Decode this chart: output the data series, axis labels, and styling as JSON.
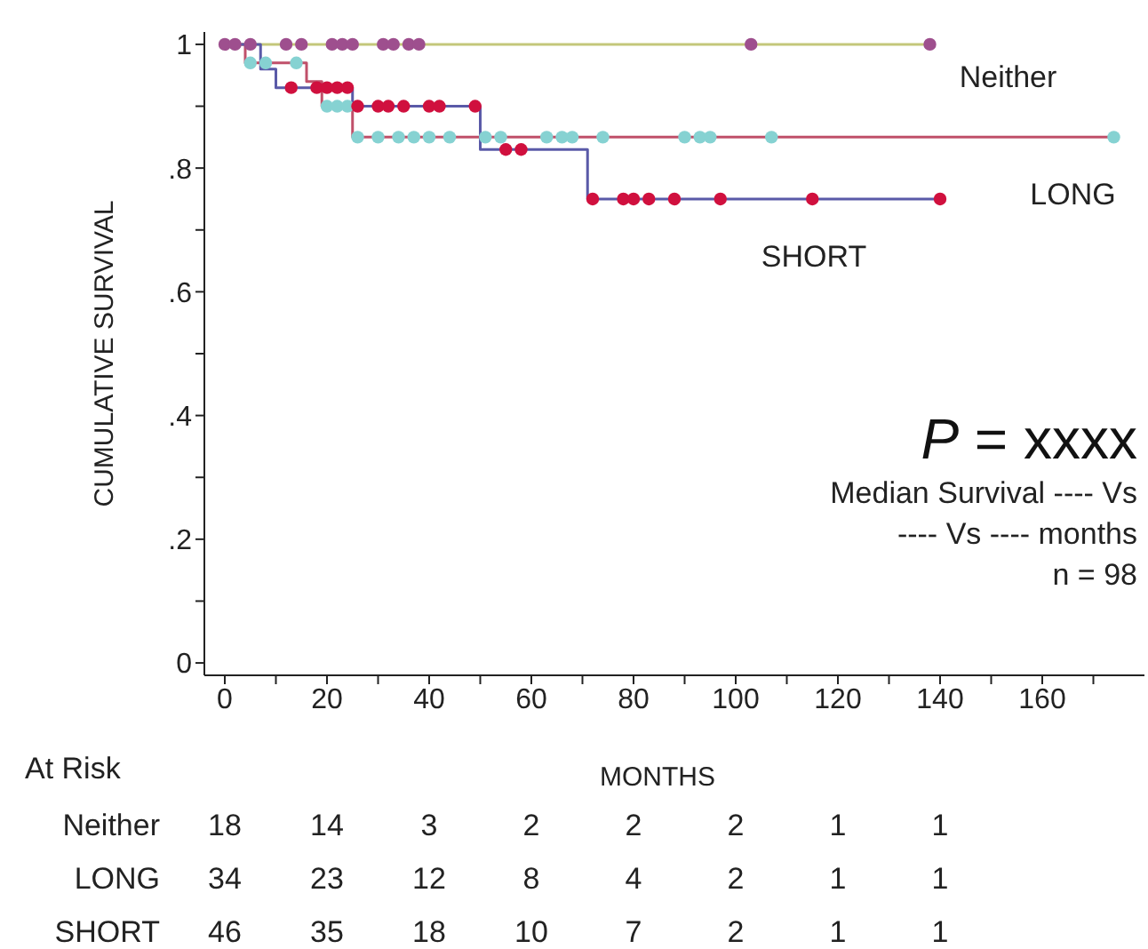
{
  "chart_data": {
    "type": "step",
    "xlabel": "MONTHS",
    "ylabel": "CUMULATIVE SURVIVAL",
    "xlim": [
      -4,
      180
    ],
    "ylim": [
      -0.02,
      1.02
    ],
    "xticks": [
      0,
      {
        "value": 10,
        "label": null
      },
      20,
      {
        "value": 30,
        "label": null
      },
      40,
      {
        "value": 50,
        "label": null
      },
      60,
      {
        "value": 70,
        "label": null
      },
      80,
      {
        "value": 90,
        "label": null
      },
      100,
      {
        "value": 110,
        "label": null
      },
      120,
      {
        "value": 130,
        "label": null
      },
      140,
      {
        "value": 150,
        "label": null
      },
      160,
      {
        "value": 170,
        "label": null
      }
    ],
    "yticks": [
      0,
      {
        "value": 0.1,
        "label": null
      },
      {
        "value": 0.2,
        "label": ".2"
      },
      {
        "value": 0.3,
        "label": null
      },
      {
        "value": 0.4,
        "label": ".4"
      },
      {
        "value": 0.5,
        "label": null
      },
      {
        "value": 0.6,
        "label": ".6"
      },
      {
        "value": 0.7,
        "label": null
      },
      {
        "value": 0.8,
        "label": ".8"
      },
      {
        "value": 0.9,
        "label": null
      },
      1
    ],
    "grid": false,
    "legend": false,
    "series": [
      {
        "name": "Neither",
        "color": "#c4c77a",
        "marker": "none",
        "x": [
          0,
          138
        ],
        "values": [
          1,
          1
        ]
      },
      {
        "name": "LONG",
        "color": "#c0506a",
        "marker": "none",
        "x": [
          0,
          4,
          16,
          19,
          25,
          174
        ],
        "values": [
          1,
          0.97,
          0.94,
          0.9,
          0.85,
          0.85
        ]
      },
      {
        "name": "SHORT",
        "color": "#5a5aa8",
        "marker": "none",
        "x": [
          0,
          7,
          10,
          25,
          50,
          71,
          140
        ],
        "values": [
          1,
          0.96,
          0.93,
          0.9,
          0.83,
          0.75,
          0.75
        ]
      },
      {
        "type": "scatter",
        "color": "#9e4f8e",
        "marker": "circle",
        "x": [
          0,
          2,
          5,
          12,
          15,
          21,
          23,
          25,
          31,
          33,
          36,
          38,
          103,
          138
        ],
        "values": [
          1,
          1,
          1,
          1,
          1,
          1,
          1,
          1,
          1,
          1,
          1,
          1,
          1,
          1
        ]
      },
      {
        "type": "scatter",
        "color": "#86d2d2",
        "marker": "circle",
        "x": [
          5,
          8,
          14,
          20,
          22,
          24,
          26,
          30,
          34,
          37,
          40,
          44,
          51,
          54,
          63,
          66,
          68,
          74,
          90,
          93,
          95,
          107,
          174
        ],
        "values": [
          0.97,
          0.97,
          0.97,
          0.9,
          0.9,
          0.9,
          0.85,
          0.85,
          0.85,
          0.85,
          0.85,
          0.85,
          0.85,
          0.85,
          0.85,
          0.85,
          0.85,
          0.85,
          0.85,
          0.85,
          0.85,
          0.85,
          0.85
        ]
      },
      {
        "type": "scatter",
        "color": "#d0103e",
        "marker": "circle",
        "x": [
          13,
          18,
          20,
          22,
          24,
          26,
          30,
          32,
          35,
          40,
          42,
          49,
          55,
          58,
          72,
          78,
          80,
          83,
          88,
          97,
          115,
          140
        ],
        "values": [
          0.93,
          0.93,
          0.93,
          0.93,
          0.93,
          0.9,
          0.9,
          0.9,
          0.9,
          0.9,
          0.9,
          0.9,
          0.83,
          0.83,
          0.75,
          0.75,
          0.75,
          0.75,
          0.75,
          0.75,
          0.75,
          0.75
        ]
      }
    ],
    "annotations": [
      "P = xxxx",
      "Median Survival ---- Vs",
      "---- Vs ---- months",
      "n = 98",
      "At Risk",
      "Neither",
      "18",
      "14",
      "3",
      "2",
      "2",
      "2",
      "1",
      "1",
      "LONG",
      "34",
      "23",
      "12",
      "8",
      "4",
      "2",
      "1",
      "1",
      "SHORT",
      "46",
      "35",
      "18",
      "10",
      "7",
      "2",
      "1",
      "1"
    ]
  }
}
